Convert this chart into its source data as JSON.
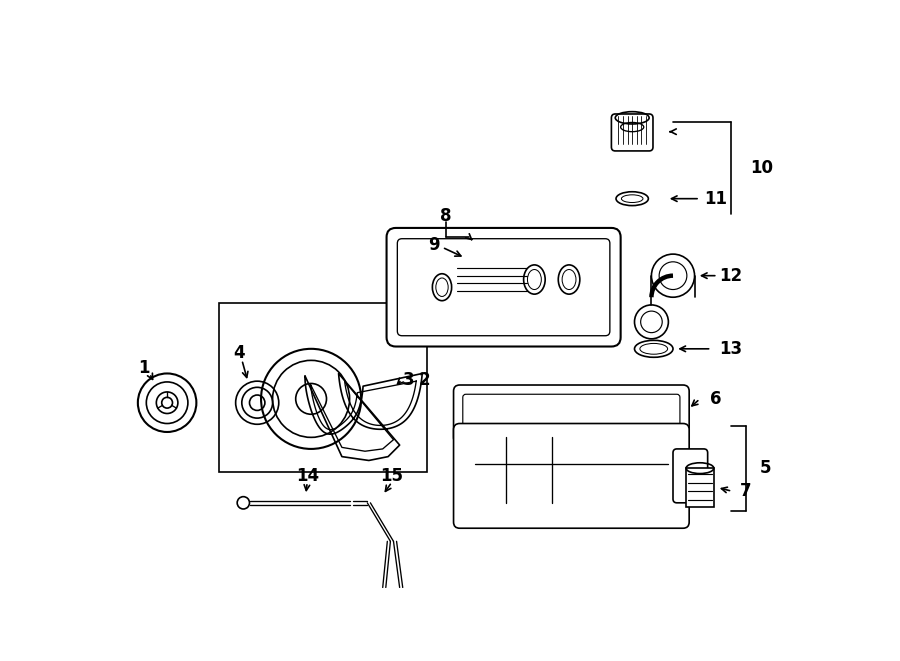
{
  "background_color": "#ffffff",
  "line_color": "#000000",
  "fig_w": 9.0,
  "fig_h": 6.61,
  "dpi": 100
}
